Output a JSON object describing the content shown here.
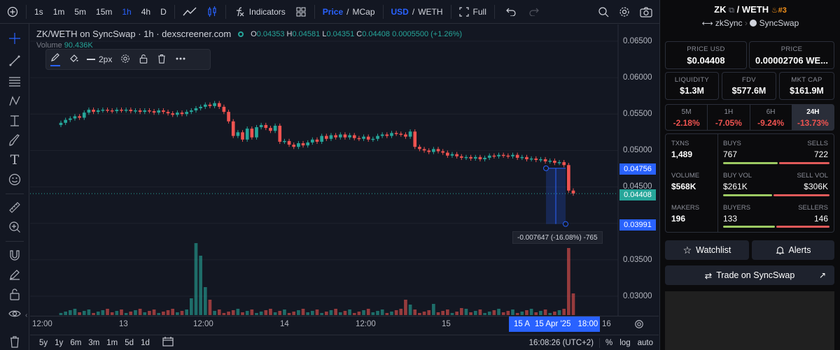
{
  "toolbar": {
    "intervals": [
      "1s",
      "1m",
      "5m",
      "15m",
      "1h",
      "4h",
      "D"
    ],
    "active_interval": "1h",
    "indicators_label": "Indicators",
    "price_label": "Price",
    "mcap_label": "MCap",
    "quote_usd": "USD",
    "quote_weth": "WETH",
    "full_label": "Full"
  },
  "legend": {
    "title": "ZK/WETH on SyncSwap · 1h · dexscreener.com",
    "o_label": "O",
    "o": "0.04353",
    "h_label": "H",
    "h": "0.04581",
    "l_label": "L",
    "l": "0.04351",
    "c_label": "C",
    "c": "0.04408",
    "change": "0.0005500 (+1.26%)",
    "volume_label": "Volume",
    "volume": "90.436K"
  },
  "draw_toolbar": {
    "width_label": "2px"
  },
  "price_axis": [
    "0.06500",
    "0.06000",
    "0.05500",
    "0.05000",
    "0.04500",
    "0.04000",
    "0.03500",
    "0.03000"
  ],
  "price_tags": {
    "upper": "0.04756",
    "current": "0.04408",
    "lower": "0.03991"
  },
  "measure_label": "-0.007647 (-16.08%) -765",
  "time_axis": [
    "12:00",
    "13",
    "12:00",
    "14",
    "12:00",
    "15",
    "16"
  ],
  "time_highlight": {
    "left": "15 A",
    "date": "15 Apr '25",
    "time": "18:00"
  },
  "bottombar": {
    "ranges": [
      "5y",
      "1y",
      "6m",
      "3m",
      "1m",
      "5d",
      "1d"
    ],
    "clock": "16:08:26 (UTC+2)",
    "pct_label": "%",
    "log_label": "log",
    "auto_label": "auto"
  },
  "panel": {
    "pair_base": "ZK",
    "pair_quote": "WETH",
    "rank": "#3",
    "chain": "zkSync",
    "dex": "SyncSwap",
    "price_usd_label": "PRICE USD",
    "price_usd": "$0.04408",
    "price_label": "PRICE",
    "price": "0.00002706 WE...",
    "liquidity_label": "LIQUIDITY",
    "liquidity": "$1.3M",
    "fdv_label": "FDV",
    "fdv": "$577.6M",
    "mktcap_label": "MKT CAP",
    "mktcap": "$161.9M",
    "tabs": [
      {
        "label": "5M",
        "pct": "-2.18%"
      },
      {
        "label": "1H",
        "pct": "-7.05%"
      },
      {
        "label": "6H",
        "pct": "-9.24%"
      },
      {
        "label": "24H",
        "pct": "-13.73%"
      }
    ],
    "txns_label": "TXNS",
    "txns": "1,489",
    "buys_label": "BUYS",
    "buys": "767",
    "sells_label": "SELLS",
    "sells": "722",
    "volume_label": "VOLUME",
    "volume": "$568K",
    "buyvol_label": "BUY VOL",
    "buyvol": "$261K",
    "sellvol_label": "SELL VOL",
    "sellvol": "$306K",
    "makers_label": "MAKERS",
    "makers": "196",
    "buyers_label": "BUYERS",
    "buyers": "133",
    "sellers_label": "SELLERS",
    "sellers": "146",
    "watchlist_label": "Watchlist",
    "alerts_label": "Alerts",
    "trade_label": "Trade on SyncSwap"
  },
  "colors": {
    "up": "#26a69a",
    "down": "#ef5350",
    "accent": "#2962ff",
    "bg": "#131722"
  }
}
